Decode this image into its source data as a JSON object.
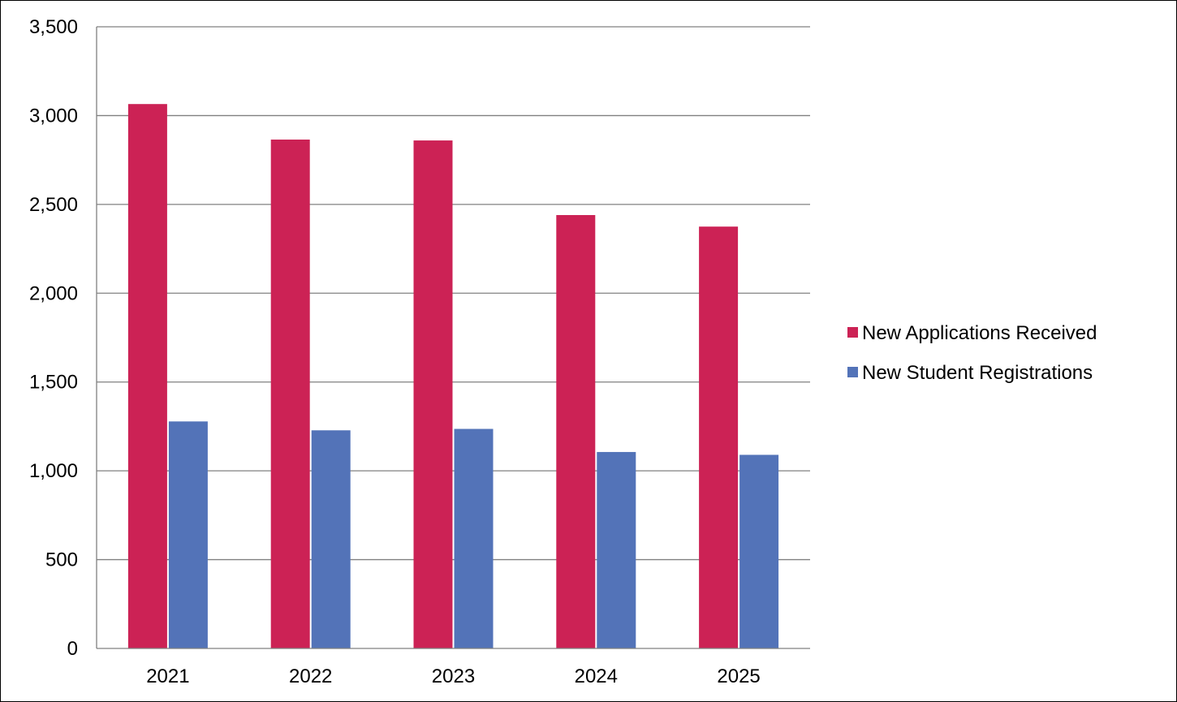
{
  "chart_data": {
    "type": "bar",
    "title": "",
    "xlabel": "",
    "ylabel": "",
    "categories": [
      "2021",
      "2022",
      "2023",
      "2024",
      "2025"
    ],
    "series": [
      {
        "name": "New Applications Received",
        "color": "#cc2255",
        "values": [
          3065,
          2865,
          2860,
          2440,
          2375
        ]
      },
      {
        "name": "New Student Registrations",
        "color": "#5373b8",
        "values": [
          1278,
          1228,
          1236,
          1106,
          1090
        ]
      }
    ],
    "ylim": [
      0,
      3500
    ],
    "yticks": [
      0,
      500,
      1000,
      1500,
      2000,
      2500,
      3000,
      3500
    ],
    "ytick_labels": [
      "0",
      "500",
      "1,000",
      "1,500",
      "2,000",
      "2,500",
      "3,000",
      "3,500"
    ],
    "grid": "horizontal",
    "grid_color": "#808080",
    "legend_position": "right"
  }
}
